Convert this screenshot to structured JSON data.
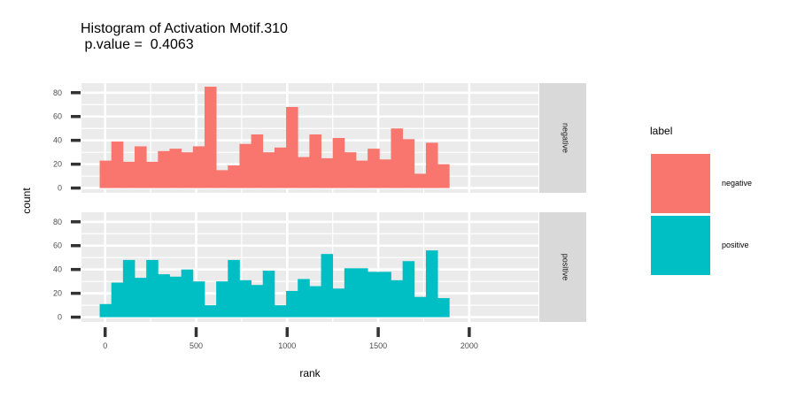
{
  "chart_data": {
    "type": "bar",
    "title_line1": "Histogram of Activation Motif.310",
    "title_line2": " p.value =  0.4063",
    "xlabel": "rank",
    "ylabel": "count",
    "xlim": [
      -130,
      2380
    ],
    "ylim": [
      -4,
      88
    ],
    "x_ticks": [
      0,
      500,
      1000,
      1500,
      2000
    ],
    "y_ticks": [
      0,
      20,
      40,
      60,
      80
    ],
    "bin_start": -30,
    "bin_width": 64,
    "legend_title": "label",
    "series": [
      {
        "name": "negative",
        "color": "#F8766D",
        "values": [
          23,
          39,
          22,
          35,
          22,
          31,
          33,
          30,
          35,
          85,
          15,
          19,
          37,
          45,
          30,
          34,
          68,
          26,
          45,
          25,
          42,
          30,
          23,
          33,
          24,
          50,
          41,
          12,
          38,
          20
        ]
      },
      {
        "name": "positive",
        "color": "#00BFC4",
        "values": [
          11,
          29,
          48,
          33,
          48,
          36,
          34,
          40,
          30,
          10,
          30,
          48,
          31,
          27,
          39,
          10,
          22,
          32,
          26,
          53,
          24,
          41,
          41,
          38,
          38,
          31,
          47,
          17,
          56,
          16
        ]
      }
    ]
  }
}
